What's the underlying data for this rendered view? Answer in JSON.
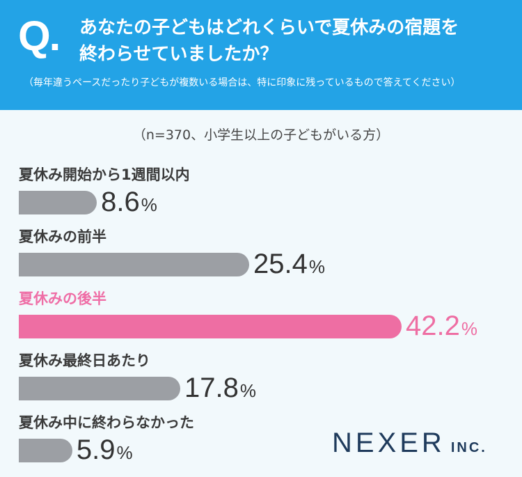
{
  "header": {
    "q_mark": "Q.",
    "question_line1": "あなたの子どもはどれくらいで夏休みの宿題を",
    "question_line2": "終わらせていましたか？",
    "note": "（毎年違うペースだったり子どもが複数いる場合は、特に印象に残っているもので答えてください）"
  },
  "colors": {
    "header_bg": "#23a3e6",
    "bar_default": "#9c9fa4",
    "bar_highlight": "#ee6ea3",
    "logo": "#1f3b5c"
  },
  "chart_data": {
    "type": "bar",
    "orientation": "horizontal",
    "subtitle": "（n=370、小学生以上の子どもがいる方）",
    "categories": [
      "夏休み開始から1週間以内",
      "夏休みの前半",
      "夏休みの後半",
      "夏休み最終日あたり",
      "夏休み中に終わらなかった"
    ],
    "values": [
      8.6,
      25.4,
      42.2,
      17.8,
      5.9
    ],
    "value_labels": [
      "8.6",
      "25.4",
      "42.2",
      "17.8",
      "5.9"
    ],
    "unit": "%",
    "highlight_index": 2,
    "xlim": [
      0,
      42.2
    ]
  },
  "logo": {
    "main": "NEXER",
    "suffix": "INC."
  }
}
